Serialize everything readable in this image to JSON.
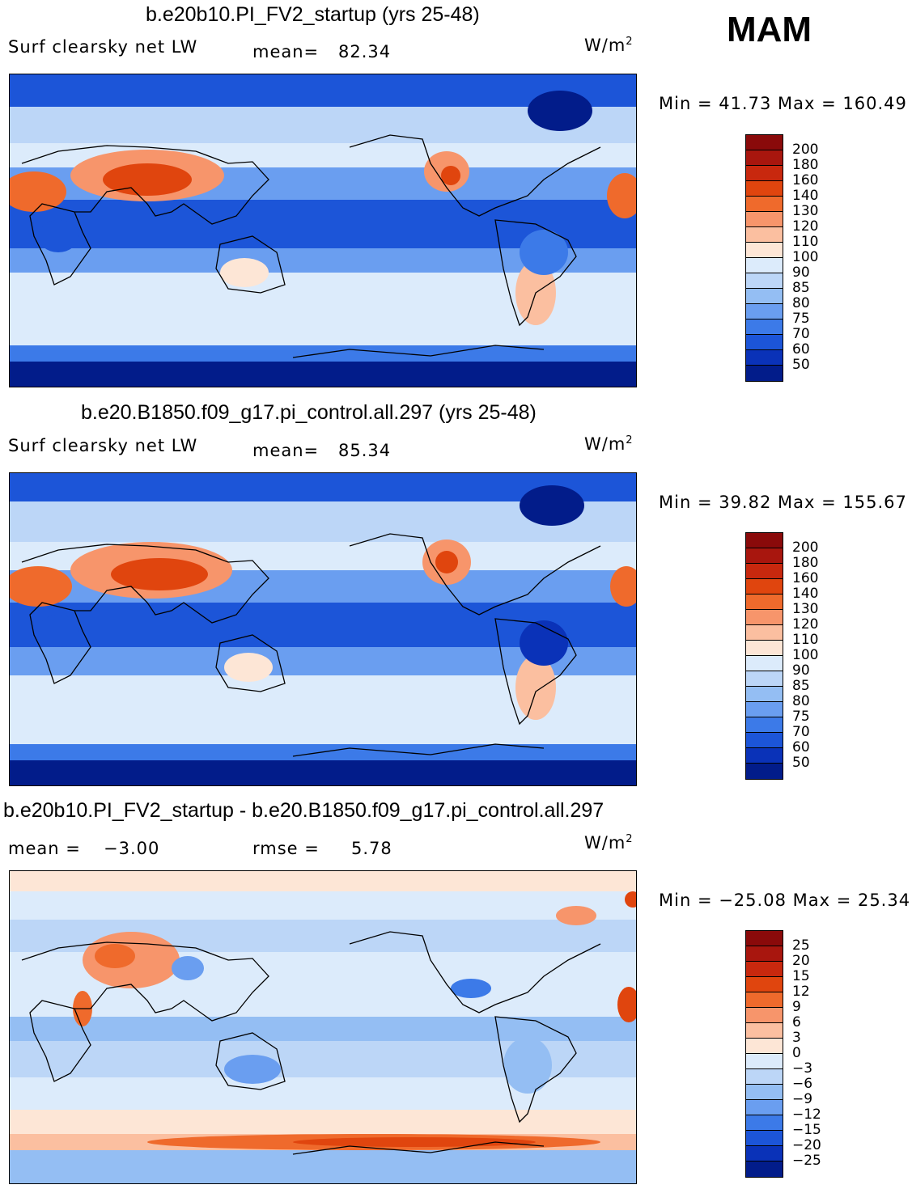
{
  "season": "MAM",
  "units_base": "W/m",
  "units_exp": "2",
  "panels": [
    {
      "title": "b.e20b10.PI_FV2_startup (yrs 25-48)",
      "variable": "Surf  clearsky  net  LW",
      "stat_label": "mean=",
      "stat_value": "82.34",
      "range_text": "Min  =    41.73  Max  =   160.49",
      "levels": [
        "200",
        "180",
        "160",
        "140",
        "130",
        "120",
        "110",
        "100",
        "90",
        "85",
        "80",
        "75",
        "70",
        "60",
        "50"
      ],
      "colors": [
        "#8a0a0a",
        "#a8160e",
        "#c8280e",
        "#e0450e",
        "#ef6a2c",
        "#f7956b",
        "#fbbfa0",
        "#fde6d6",
        "#dcebfb",
        "#bcd6f7",
        "#94bef3",
        "#6a9ef0",
        "#3c7ae8",
        "#1c55d8",
        "#0a32b8",
        "#021c8a"
      ]
    },
    {
      "title": "b.e20.B1850.f09_g17.pi_control.all.297 (yrs 25-48)",
      "variable": "Surf  clearsky  net  LW",
      "stat_label": "mean=",
      "stat_value": "85.34",
      "range_text": "Min  =    39.82  Max  =   155.67",
      "levels": [
        "200",
        "180",
        "160",
        "140",
        "130",
        "120",
        "110",
        "100",
        "90",
        "85",
        "80",
        "75",
        "70",
        "60",
        "50"
      ],
      "colors": [
        "#8a0a0a",
        "#a8160e",
        "#c8280e",
        "#e0450e",
        "#ef6a2c",
        "#f7956b",
        "#fbbfa0",
        "#fde6d6",
        "#dcebfb",
        "#bcd6f7",
        "#94bef3",
        "#6a9ef0",
        "#3c7ae8",
        "#1c55d8",
        "#0a32b8",
        "#021c8a"
      ]
    },
    {
      "title": "b.e20b10.PI_FV2_startup - b.e20.B1850.f09_g17.pi_control.all.297",
      "stat_label": "mean  =",
      "stat_value": "−3.00",
      "rmse_label": "rmse  =",
      "rmse_value": "5.78",
      "range_text": "Min  = −25.08  Max  =    25.34",
      "levels": [
        "25",
        "20",
        "15",
        "12",
        "9",
        "6",
        "3",
        "0",
        "−3",
        "−6",
        "−9",
        "−12",
        "−15",
        "−20",
        "−25"
      ],
      "colors": [
        "#8a0a0a",
        "#a8160e",
        "#c8280e",
        "#e0450e",
        "#ef6a2c",
        "#f7956b",
        "#fbbfa0",
        "#fde6d6",
        "#dcebfb",
        "#bcd6f7",
        "#94bef3",
        "#6a9ef0",
        "#3c7ae8",
        "#1c55d8",
        "#0a32b8",
        "#021c8a"
      ]
    }
  ]
}
